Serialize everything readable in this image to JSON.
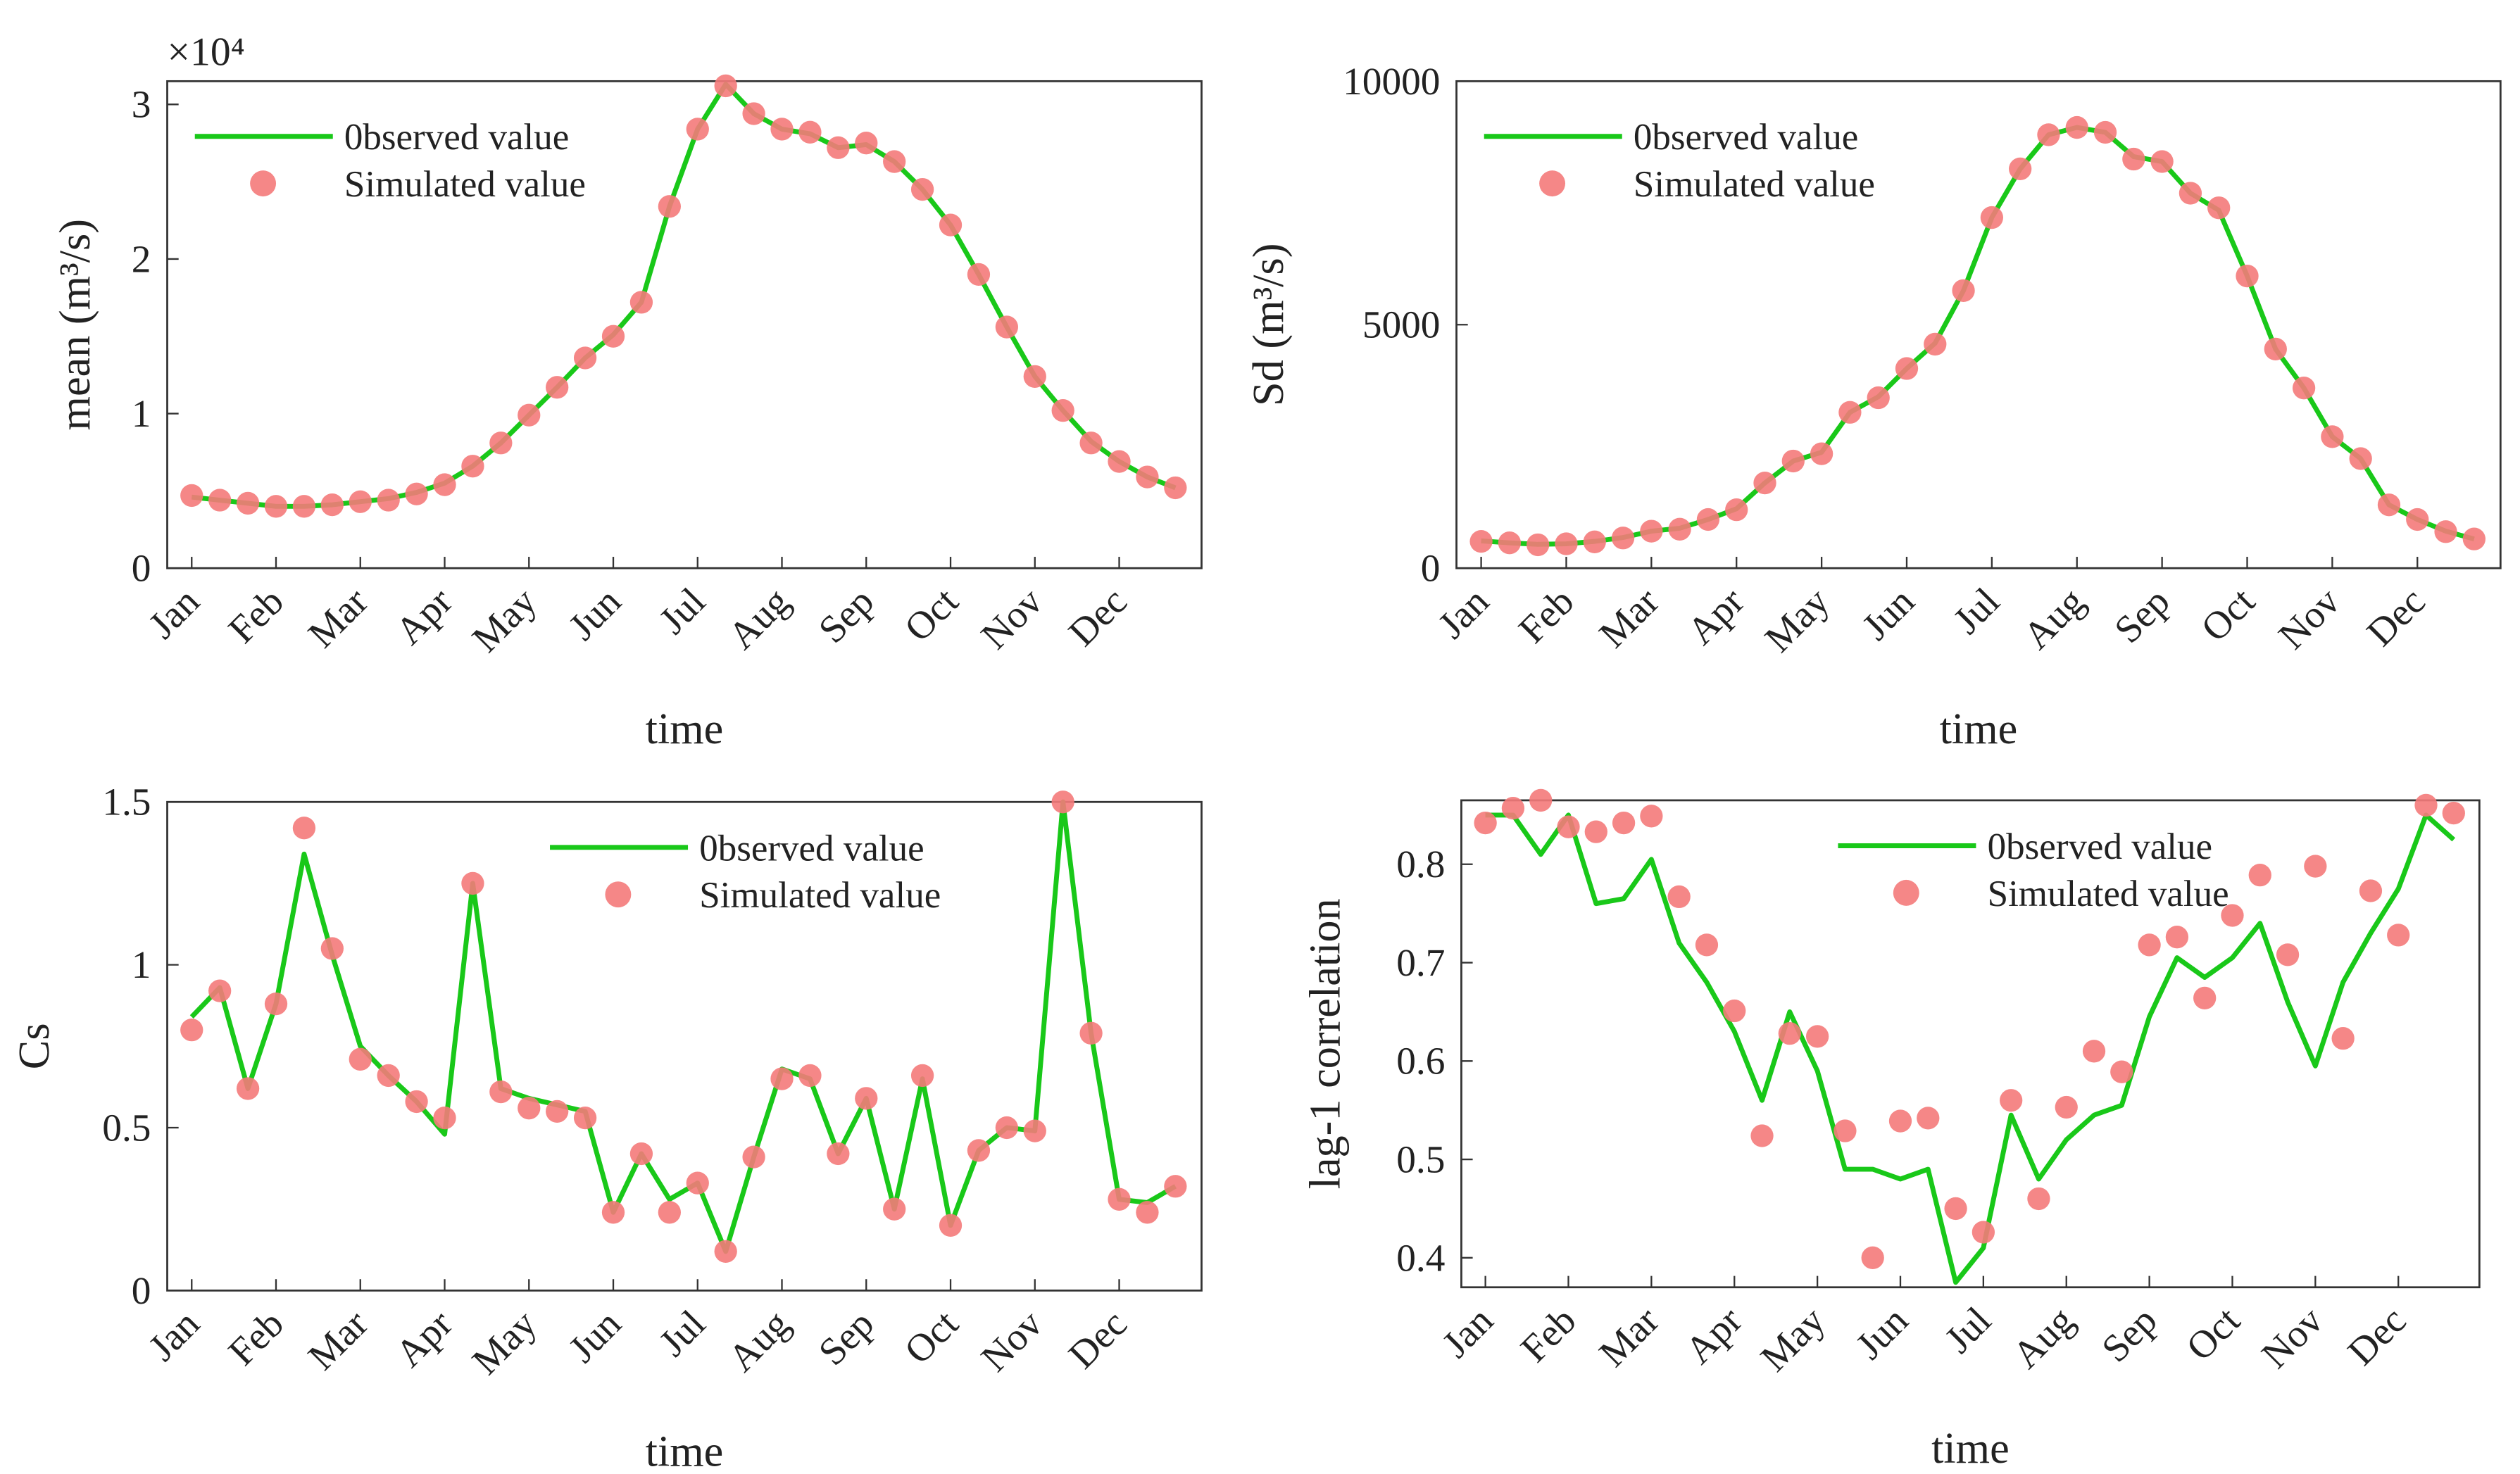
{
  "chart_data": [
    {
      "type": "line",
      "ylabel": "mean (m³/s)",
      "xlabel": "time",
      "annotation": "×10⁴",
      "categories": [
        "Jan",
        null,
        null,
        "Feb",
        null,
        null,
        "Mar",
        null,
        null,
        "Apr",
        null,
        null,
        "May",
        null,
        null,
        "Jun",
        null,
        null,
        "Jul",
        null,
        null,
        "Aug",
        null,
        null,
        "Sep",
        null,
        null,
        "Oct",
        null,
        null,
        "Nov",
        null,
        null,
        "Dec",
        null,
        null
      ],
      "ylim": [
        0,
        3.15
      ],
      "yticks": [
        0,
        1,
        2,
        3
      ],
      "legend_loc": "upper left",
      "series": [
        {
          "name": "0bserved value",
          "color": "#19c819",
          "style": "line",
          "values": [
            0.46,
            0.44,
            0.42,
            0.4,
            0.4,
            0.41,
            0.43,
            0.45,
            0.49,
            0.55,
            0.66,
            0.81,
            0.99,
            1.17,
            1.36,
            1.51,
            1.72,
            2.34,
            2.84,
            3.13,
            2.94,
            2.84,
            2.81,
            2.72,
            2.74,
            2.63,
            2.45,
            2.22,
            1.9,
            1.56,
            1.24,
            1.02,
            0.82,
            0.69,
            0.59,
            0.52
          ]
        },
        {
          "name": "Simulated value",
          "color": "#f47a7a",
          "style": "marker",
          "values": [
            0.47,
            0.44,
            0.42,
            0.4,
            0.4,
            0.41,
            0.43,
            0.44,
            0.48,
            0.54,
            0.66,
            0.81,
            0.99,
            1.17,
            1.36,
            1.5,
            1.72,
            2.34,
            2.84,
            3.12,
            2.94,
            2.84,
            2.82,
            2.72,
            2.75,
            2.63,
            2.45,
            2.22,
            1.9,
            1.56,
            1.24,
            1.02,
            0.81,
            0.69,
            0.59,
            0.52
          ]
        }
      ]
    },
    {
      "type": "line",
      "ylabel": "Sd (m³/s)",
      "xlabel": "time",
      "categories": [
        "Jan",
        null,
        null,
        "Feb",
        null,
        null,
        "Mar",
        null,
        null,
        "Apr",
        null,
        null,
        "May",
        null,
        null,
        "Jun",
        null,
        null,
        "Jul",
        null,
        null,
        "Aug",
        null,
        null,
        "Sep",
        null,
        null,
        "Oct",
        null,
        null,
        "Nov",
        null,
        null,
        "Dec",
        null,
        null
      ],
      "ylim": [
        0,
        10000
      ],
      "yticks": [
        0,
        5000,
        10000
      ],
      "legend_loc": "upper left",
      "series": [
        {
          "name": "0bserved value",
          "color": "#19c819",
          "style": "line",
          "values": [
            560,
            520,
            490,
            500,
            550,
            630,
            760,
            820,
            1000,
            1220,
            1750,
            2200,
            2380,
            3200,
            3520,
            4100,
            4620,
            5700,
            7200,
            8200,
            8900,
            9050,
            8950,
            8450,
            8350,
            7700,
            7350,
            6000,
            4500,
            3700,
            2700,
            2250,
            1300,
            1000,
            760,
            600
          ]
        },
        {
          "name": "Simulated value",
          "color": "#f47a7a",
          "style": "marker",
          "values": [
            550,
            520,
            480,
            500,
            540,
            620,
            760,
            800,
            1000,
            1200,
            1750,
            2200,
            2350,
            3200,
            3500,
            4100,
            4600,
            5700,
            7200,
            8200,
            8900,
            9050,
            8950,
            8400,
            8350,
            7700,
            7400,
            6000,
            4500,
            3700,
            2700,
            2250,
            1300,
            1000,
            750,
            600
          ]
        }
      ]
    },
    {
      "type": "line",
      "ylabel": "Cs",
      "xlabel": "time",
      "categories": [
        "Jan",
        null,
        null,
        "Feb",
        null,
        null,
        "Mar",
        null,
        null,
        "Apr",
        null,
        null,
        "May",
        null,
        null,
        "Jun",
        null,
        null,
        "Jul",
        null,
        null,
        "Aug",
        null,
        null,
        "Sep",
        null,
        null,
        "Oct",
        null,
        null,
        "Nov",
        null,
        null,
        "Dec",
        null,
        null
      ],
      "ylim": [
        0,
        1.5
      ],
      "yticks": [
        0,
        0.5,
        1,
        1.5
      ],
      "legend_loc": "upper center",
      "series": [
        {
          "name": "0bserved value",
          "color": "#19c819",
          "style": "line",
          "values": [
            0.84,
            0.93,
            0.62,
            0.88,
            1.34,
            1.03,
            0.75,
            0.66,
            0.58,
            0.48,
            1.25,
            0.62,
            0.59,
            0.57,
            0.55,
            0.24,
            0.42,
            0.28,
            0.33,
            0.12,
            0.41,
            0.68,
            0.65,
            0.42,
            0.59,
            0.25,
            0.65,
            0.2,
            0.43,
            0.5,
            0.49,
            1.5,
            0.79,
            0.28,
            0.27,
            0.32
          ]
        },
        {
          "name": "Simulated value",
          "color": "#f47a7a",
          "style": "marker",
          "values": [
            0.8,
            0.92,
            0.62,
            0.88,
            1.42,
            1.05,
            0.71,
            0.66,
            0.58,
            0.53,
            1.25,
            0.61,
            0.56,
            0.55,
            0.53,
            0.24,
            0.42,
            0.24,
            0.33,
            0.12,
            0.41,
            0.65,
            0.66,
            0.42,
            0.59,
            0.25,
            0.66,
            0.2,
            0.43,
            0.5,
            0.49,
            1.5,
            0.79,
            0.28,
            0.24,
            0.32
          ]
        }
      ]
    },
    {
      "type": "line",
      "ylabel": "lag-1 correlation",
      "xlabel": "time",
      "categories": [
        "Jan",
        null,
        null,
        "Feb",
        null,
        null,
        "Mar",
        null,
        null,
        "Apr",
        null,
        null,
        "May",
        null,
        null,
        "Jun",
        null,
        null,
        "Jul",
        null,
        null,
        "Aug",
        null,
        null,
        "Sep",
        null,
        null,
        "Oct",
        null,
        null,
        "Nov",
        null,
        null,
        "Dec",
        null,
        null
      ],
      "ylim": [
        0.37,
        0.865
      ],
      "yticks": [
        0.4,
        0.5,
        0.6,
        0.7,
        0.8
      ],
      "legend_loc": "upper center",
      "series": [
        {
          "name": "0bserved value",
          "color": "#19c819",
          "style": "line",
          "values": [
            0.85,
            0.85,
            0.81,
            0.85,
            0.76,
            0.765,
            0.805,
            0.72,
            0.68,
            0.63,
            0.56,
            0.65,
            0.59,
            0.49,
            0.49,
            0.48,
            0.49,
            0.375,
            0.41,
            0.545,
            0.48,
            0.52,
            0.545,
            0.555,
            0.645,
            0.705,
            0.685,
            0.705,
            0.74,
            0.66,
            0.595,
            0.68,
            0.73,
            0.775,
            0.85,
            0.825
          ]
        },
        {
          "name": "Simulated value",
          "color": "#f47a7a",
          "style": "marker",
          "values": [
            0.842,
            0.857,
            0.865,
            0.838,
            0.833,
            0.842,
            0.849,
            0.767,
            0.718,
            0.651,
            0.524,
            0.628,
            0.625,
            0.529,
            0.4,
            0.539,
            0.542,
            0.45,
            0.426,
            0.56,
            0.46,
            0.553,
            0.61,
            0.589,
            0.718,
            0.726,
            0.664,
            0.748,
            0.789,
            0.708,
            0.798,
            0.623,
            0.773,
            0.728,
            0.86,
            0.852
          ]
        }
      ]
    }
  ]
}
